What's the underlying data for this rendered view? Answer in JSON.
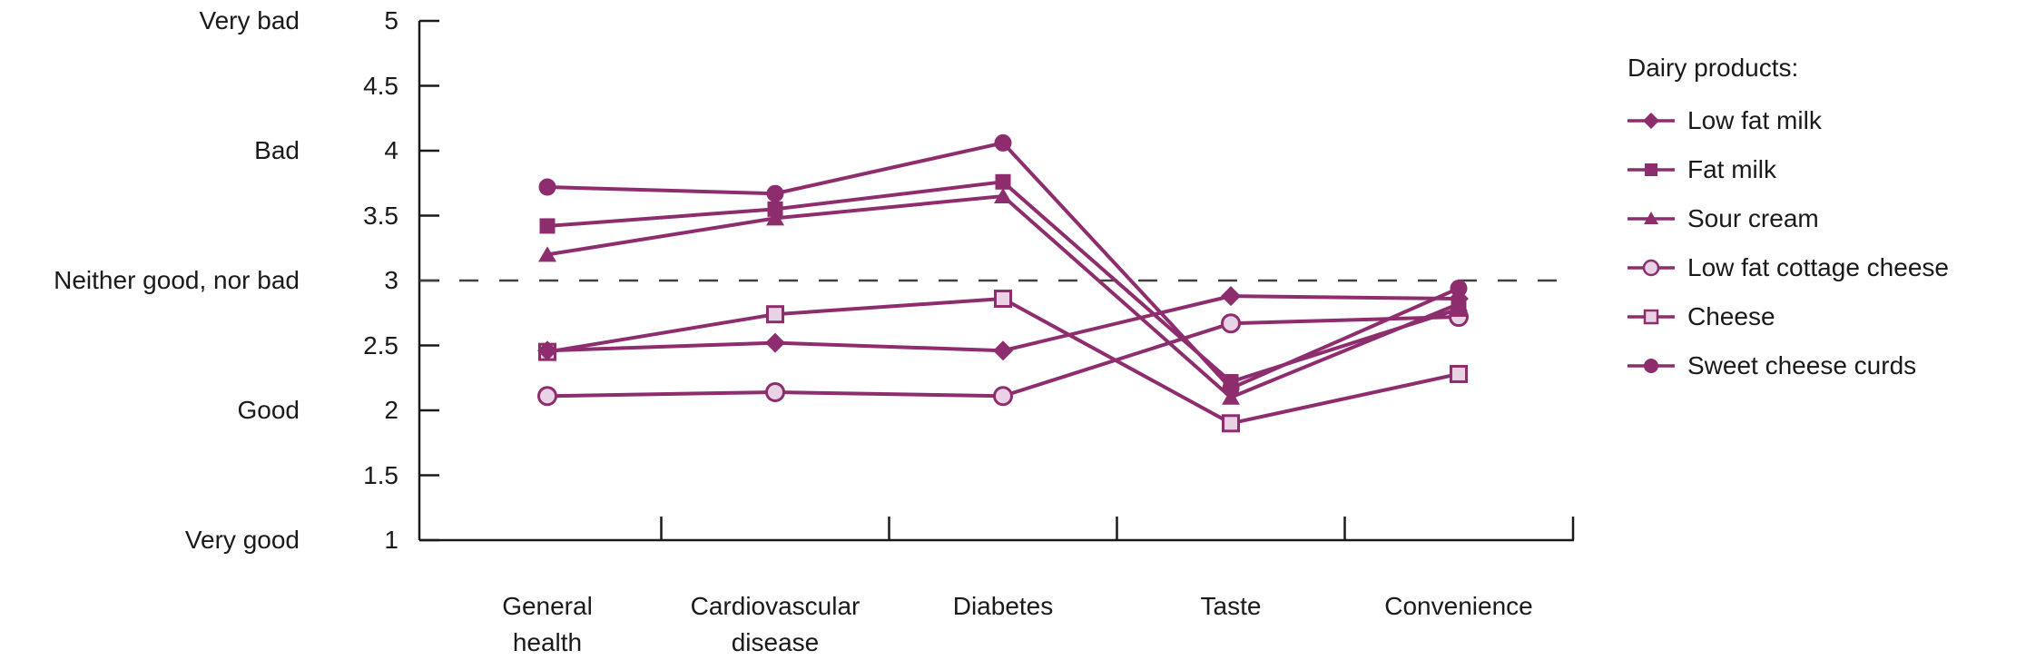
{
  "chart_data": {
    "type": "line",
    "title": "",
    "categories": [
      "General health",
      "Cardiovascular disease",
      "Diabetes",
      "Taste",
      "Convenience"
    ],
    "category_label_lines": [
      [
        "General",
        "health"
      ],
      [
        "Cardiovascular",
        "disease"
      ],
      [
        "Diabetes"
      ],
      [
        "Taste"
      ],
      [
        "Convenience"
      ]
    ],
    "xlabel": "",
    "ylabel": "",
    "y_axis": {
      "min": 1,
      "max": 5,
      "tick_step": 0.5,
      "tick_labels": [
        "5",
        "4.5",
        "4",
        "3.5",
        "3",
        "2.5",
        "2",
        "1.5",
        "1"
      ],
      "qualitative_labels": [
        {
          "text": "Very bad",
          "value": 5
        },
        {
          "text": "Bad",
          "value": 4
        },
        {
          "text": "Neither good, nor bad",
          "value": 3
        },
        {
          "text": "Good",
          "value": 2
        },
        {
          "text": "Very good",
          "value": 1
        }
      ]
    },
    "reference_line": {
      "value": 3,
      "style": "dashed"
    },
    "grid": "off",
    "legend": {
      "title": "Dairy products:",
      "position": "right"
    },
    "series": [
      {
        "name": "Low fat milk",
        "marker": "diamond",
        "marker_fill": "solid",
        "values": [
          2.46,
          2.52,
          2.46,
          2.88,
          2.86
        ]
      },
      {
        "name": "Fat milk",
        "marker": "square",
        "marker_fill": "solid",
        "values": [
          3.42,
          3.55,
          3.76,
          2.22,
          2.78
        ]
      },
      {
        "name": "Sour cream",
        "marker": "triangle",
        "marker_fill": "solid",
        "values": [
          3.2,
          3.48,
          3.65,
          2.1,
          2.82
        ]
      },
      {
        "name": "Low fat cottage cheese",
        "marker": "circle",
        "marker_fill": "open",
        "values": [
          2.11,
          2.14,
          2.11,
          2.67,
          2.72
        ]
      },
      {
        "name": "Cheese",
        "marker": "square",
        "marker_fill": "open",
        "values": [
          2.45,
          2.74,
          2.86,
          1.9,
          2.28
        ]
      },
      {
        "name": "Sweet cheese curds",
        "marker": "circle",
        "marker_fill": "solid",
        "values": [
          3.72,
          3.67,
          4.06,
          2.17,
          2.94
        ]
      }
    ],
    "colors": {
      "series_line": "#8E2D6E",
      "open_marker_fill": "#E8D2E4",
      "axis": "#1a1a1a",
      "reference_dash": "#404040",
      "text": "#1a1a1a"
    }
  }
}
